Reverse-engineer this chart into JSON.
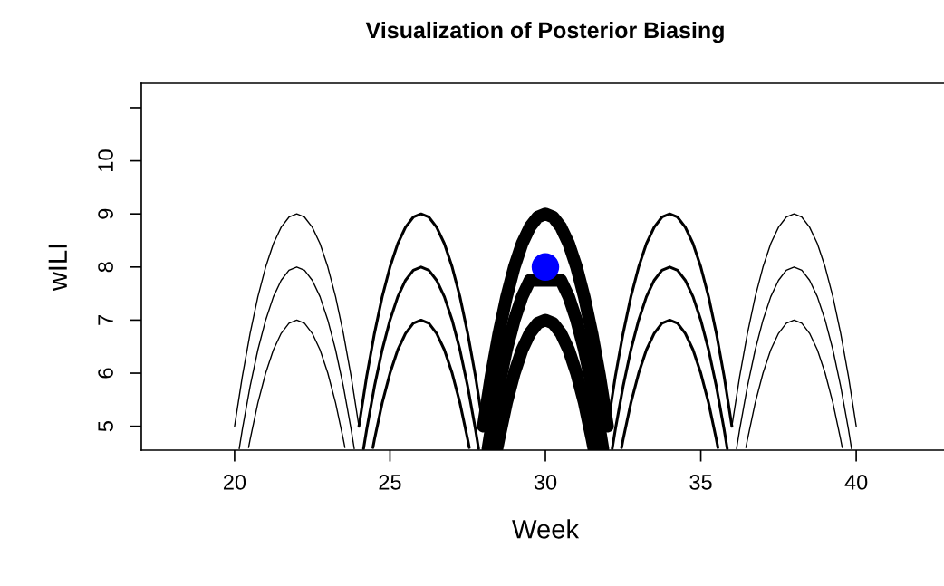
{
  "chart_data": {
    "type": "line",
    "title": "Visualization of Posterior Biasing",
    "xlabel": "Week",
    "ylabel": "wILI",
    "xlim": [
      17,
      43
    ],
    "xticks": [
      20,
      25,
      30,
      35,
      40
    ],
    "ylim": [
      4.55,
      11.46
    ],
    "yticks": [
      5,
      6,
      7,
      8,
      9,
      10,
      {
        "value": 11,
        "label": null
      }
    ],
    "series": [
      {
        "color": "#000000",
        "x": [
          20,
          20.25,
          20.5,
          20.75,
          21,
          21.25,
          21.5,
          21.75,
          22,
          22.25,
          22.5,
          22.75,
          23,
          23.25,
          23.5,
          23.75,
          24
        ],
        "values": [
          5,
          5.94,
          6.75,
          7.44,
          8,
          8.44,
          8.75,
          8.94,
          9,
          8.94,
          8.75,
          8.44,
          8,
          7.44,
          6.75,
          5.94,
          5
        ]
      },
      {
        "color": "#000000",
        "x": [
          20.15,
          20.25,
          20.5,
          20.75,
          21,
          21.25,
          21.5,
          21.75,
          22,
          22.25,
          22.5,
          22.75,
          23,
          23.25,
          23.5,
          23.75,
          23.85
        ],
        "values": [
          4.58,
          4.94,
          5.75,
          6.44,
          7,
          7.44,
          7.75,
          7.94,
          8,
          7.94,
          7.75,
          7.44,
          7,
          6.44,
          5.75,
          4.94,
          4.58
        ]
      },
      {
        "color": "#000000",
        "x": [
          20.45,
          20.5,
          20.75,
          21,
          21.25,
          21.5,
          21.75,
          22,
          22.25,
          22.5,
          22.75,
          23,
          23.25,
          23.5,
          23.55
        ],
        "values": [
          4.6,
          4.75,
          5.44,
          6,
          6.44,
          6.75,
          6.94,
          7,
          6.94,
          6.75,
          6.44,
          6,
          5.44,
          4.75,
          4.6
        ]
      },
      {
        "color": "#000000",
        "x": [
          24,
          24.25,
          24.5,
          24.75,
          25,
          25.25,
          25.5,
          25.75,
          26,
          26.25,
          26.5,
          26.75,
          27,
          27.25,
          27.5,
          27.75,
          28
        ],
        "values": [
          5,
          5.94,
          6.75,
          7.44,
          8,
          8.44,
          8.75,
          8.94,
          9,
          8.94,
          8.75,
          8.44,
          8,
          7.44,
          6.75,
          5.94,
          5
        ]
      },
      {
        "color": "#000000",
        "x": [
          24.15,
          24.25,
          24.5,
          24.75,
          25,
          25.25,
          25.5,
          25.75,
          26,
          26.25,
          26.5,
          26.75,
          27,
          27.25,
          27.5,
          27.75,
          27.85
        ],
        "values": [
          4.58,
          4.94,
          5.75,
          6.44,
          7,
          7.44,
          7.75,
          7.94,
          8,
          7.94,
          7.75,
          7.44,
          7,
          6.44,
          5.75,
          4.94,
          4.58
        ]
      },
      {
        "color": "#000000",
        "x": [
          24.45,
          24.5,
          24.75,
          25,
          25.25,
          25.5,
          25.75,
          26,
          26.25,
          26.5,
          26.75,
          27,
          27.25,
          27.5,
          27.55
        ],
        "values": [
          4.6,
          4.75,
          5.44,
          6,
          6.44,
          6.75,
          6.94,
          7,
          6.94,
          6.75,
          6.44,
          6,
          5.44,
          4.75,
          4.6
        ]
      },
      {
        "color": "#000000",
        "x": [
          28,
          28.25,
          28.5,
          28.75,
          29,
          29.25,
          29.5,
          29.75,
          30,
          30.25,
          30.5,
          30.75,
          31,
          31.25,
          31.5,
          31.75,
          32
        ],
        "values": [
          5,
          5.94,
          6.75,
          7.44,
          8,
          8.44,
          8.75,
          8.94,
          9,
          8.94,
          8.75,
          8.44,
          8,
          7.44,
          6.75,
          5.94,
          5
        ]
      },
      {
        "color": "#000000",
        "x": [
          28.15,
          28.25,
          28.5,
          28.75,
          29,
          29.25,
          29.5,
          30.5,
          30.75,
          31,
          31.25,
          31.5,
          31.75,
          31.85
        ],
        "values": [
          4.58,
          4.94,
          5.75,
          6.44,
          7,
          7.44,
          7.75,
          7.75,
          7.44,
          7,
          6.44,
          5.75,
          4.94,
          4.58
        ]
      },
      {
        "color": "#000000",
        "x": [
          28.45,
          28.5,
          28.75,
          29,
          29.25,
          29.5,
          29.75,
          30,
          30.25,
          30.5,
          30.75,
          31,
          31.25,
          31.5,
          31.55
        ],
        "values": [
          4.6,
          4.75,
          5.44,
          6,
          6.44,
          6.75,
          6.94,
          7,
          6.94,
          6.75,
          6.44,
          6,
          5.44,
          4.75,
          4.6
        ]
      },
      {
        "color": "#000000",
        "x": [
          32,
          32.25,
          32.5,
          32.75,
          33,
          33.25,
          33.5,
          33.75,
          34,
          34.25,
          34.5,
          34.75,
          35,
          35.25,
          35.5,
          35.75,
          36
        ],
        "values": [
          5,
          5.94,
          6.75,
          7.44,
          8,
          8.44,
          8.75,
          8.94,
          9,
          8.94,
          8.75,
          8.44,
          8,
          7.44,
          6.75,
          5.94,
          5
        ]
      },
      {
        "color": "#000000",
        "x": [
          32.15,
          32.25,
          32.5,
          32.75,
          33,
          33.25,
          33.5,
          33.75,
          34,
          34.25,
          34.5,
          34.75,
          35,
          35.25,
          35.5,
          35.75,
          35.85
        ],
        "values": [
          4.58,
          4.94,
          5.75,
          6.44,
          7,
          7.44,
          7.75,
          7.94,
          8,
          7.94,
          7.75,
          7.44,
          7,
          6.44,
          5.75,
          4.94,
          4.58
        ]
      },
      {
        "color": "#000000",
        "x": [
          32.45,
          32.5,
          32.75,
          33,
          33.25,
          33.5,
          33.75,
          34,
          34.25,
          34.5,
          34.75,
          35,
          35.25,
          35.5,
          35.55
        ],
        "values": [
          4.6,
          4.75,
          5.44,
          6,
          6.44,
          6.75,
          6.94,
          7,
          6.94,
          6.75,
          6.44,
          6,
          5.44,
          4.75,
          4.6
        ]
      },
      {
        "color": "#000000",
        "x": [
          36,
          36.25,
          36.5,
          36.75,
          37,
          37.25,
          37.5,
          37.75,
          38,
          38.25,
          38.5,
          38.75,
          39,
          39.25,
          39.5,
          39.75,
          40
        ],
        "values": [
          5,
          5.94,
          6.75,
          7.44,
          8,
          8.44,
          8.75,
          8.94,
          9,
          8.94,
          8.75,
          8.44,
          8,
          7.44,
          6.75,
          5.94,
          5
        ]
      },
      {
        "color": "#000000",
        "x": [
          36.15,
          36.25,
          36.5,
          36.75,
          37,
          37.25,
          37.5,
          37.75,
          38,
          38.25,
          38.5,
          38.75,
          39,
          39.25,
          39.5,
          39.75,
          39.85
        ],
        "values": [
          4.58,
          4.94,
          5.75,
          6.44,
          7,
          7.44,
          7.75,
          7.94,
          8,
          7.94,
          7.75,
          7.44,
          7,
          6.44,
          5.75,
          4.94,
          4.58
        ]
      },
      {
        "color": "#000000",
        "x": [
          36.45,
          36.5,
          36.75,
          37,
          37.25,
          37.5,
          37.75,
          38,
          38.25,
          38.5,
          38.75,
          39,
          39.25,
          39.5,
          39.55
        ],
        "values": [
          4.6,
          4.75,
          5.44,
          6,
          6.44,
          6.75,
          6.94,
          7,
          6.94,
          6.75,
          6.44,
          6,
          5.44,
          4.75,
          4.6
        ]
      },
      {
        "type": "scatter",
        "color": "#0000ff",
        "marker": "circle",
        "x": [
          30
        ],
        "values": [
          8
        ]
      }
    ]
  }
}
